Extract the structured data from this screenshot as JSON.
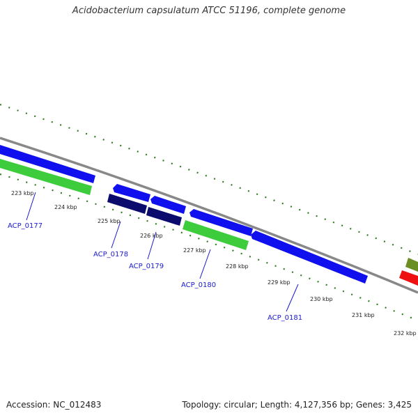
{
  "header": {
    "title": "Acidobacterium capsulatum ATCC 51196, complete genome"
  },
  "footer": {
    "accession": "Accession: NC_012483",
    "summary": "Topology: circular; Length: 4,127,356 bp; Genes: 3,425"
  },
  "colors": {
    "backbone": "#888888",
    "tick_dots": "#2e7d1e",
    "label_blue": "#1a1acc",
    "gene_blue": "#1010ee",
    "gene_navy": "#0b0b6e",
    "gene_green": "#3ccc3c",
    "gene_olive": "#6b8e23",
    "gene_red": "#ee1111"
  },
  "scale_labels": [
    "223 kbp",
    "224 kbp",
    "225 kbp",
    "226 kbp",
    "227 kbp",
    "228 kbp",
    "229 kbp",
    "230 kbp",
    "231 kbp",
    "232 kbp"
  ],
  "gene_labels": [
    "ACP_0177",
    "ACP_0178",
    "ACP_0179",
    "ACP_0180",
    "ACP_0181"
  ]
}
